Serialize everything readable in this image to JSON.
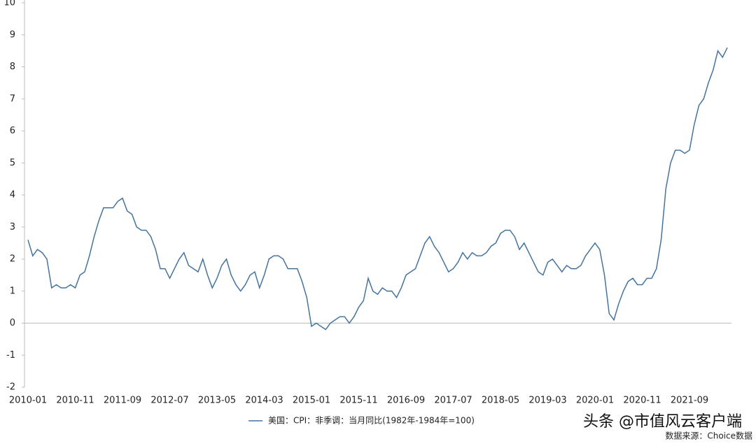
{
  "chart_data": {
    "type": "line",
    "legend": "美国：CPI：非季调：当月同比(1982年-1984年=100)",
    "annotations": [
      "头条 @市值风云客户端",
      "数据来源：Choice数据"
    ],
    "categories": [
      "2010-01",
      null,
      null,
      null,
      null,
      null,
      null,
      null,
      null,
      null,
      "2010-11",
      null,
      null,
      null,
      null,
      null,
      null,
      null,
      null,
      null,
      "2011-09",
      null,
      null,
      null,
      null,
      null,
      null,
      null,
      null,
      null,
      "2012-07",
      null,
      null,
      null,
      null,
      null,
      null,
      null,
      null,
      null,
      "2013-05",
      null,
      null,
      null,
      null,
      null,
      null,
      null,
      null,
      null,
      "2014-03",
      null,
      null,
      null,
      null,
      null,
      null,
      null,
      null,
      null,
      "2015-01",
      null,
      null,
      null,
      null,
      null,
      null,
      null,
      null,
      null,
      "2015-11",
      null,
      null,
      null,
      null,
      null,
      null,
      null,
      null,
      null,
      "2016-09",
      null,
      null,
      null,
      null,
      null,
      null,
      null,
      null,
      null,
      "2017-07",
      null,
      null,
      null,
      null,
      null,
      null,
      null,
      null,
      null,
      "2018-05",
      null,
      null,
      null,
      null,
      null,
      null,
      null,
      null,
      null,
      "2019-03",
      null,
      null,
      null,
      null,
      null,
      null,
      null,
      null,
      null,
      "2020-01",
      null,
      null,
      null,
      null,
      null,
      null,
      null,
      null,
      null,
      "2020-11",
      null,
      null,
      null,
      null,
      null,
      null,
      null,
      null,
      null,
      "2021-09",
      null,
      null,
      null,
      null,
      null,
      null,
      null,
      null
    ],
    "values": [
      2.6,
      2.1,
      2.3,
      2.2,
      2.0,
      1.1,
      1.2,
      1.1,
      1.1,
      1.2,
      1.1,
      1.5,
      1.6,
      2.1,
      2.7,
      3.2,
      3.6,
      3.6,
      3.6,
      3.8,
      3.9,
      3.5,
      3.4,
      3.0,
      2.9,
      2.9,
      2.7,
      2.3,
      1.7,
      1.7,
      1.4,
      1.7,
      2.0,
      2.2,
      1.8,
      1.7,
      1.6,
      2.0,
      1.5,
      1.1,
      1.4,
      1.8,
      2.0,
      1.5,
      1.2,
      1.0,
      1.2,
      1.5,
      1.6,
      1.1,
      1.5,
      2.0,
      2.1,
      2.1,
      2.0,
      1.7,
      1.7,
      1.7,
      1.3,
      0.8,
      -0.1,
      0.0,
      -0.1,
      -0.2,
      0.0,
      0.1,
      0.2,
      0.2,
      0.0,
      0.2,
      0.5,
      0.7,
      1.4,
      1.0,
      0.9,
      1.1,
      1.0,
      1.0,
      0.8,
      1.1,
      1.5,
      1.6,
      1.7,
      2.1,
      2.5,
      2.7,
      2.4,
      2.2,
      1.9,
      1.6,
      1.7,
      1.9,
      2.2,
      2.0,
      2.2,
      2.1,
      2.1,
      2.2,
      2.4,
      2.5,
      2.8,
      2.9,
      2.9,
      2.7,
      2.3,
      2.5,
      2.2,
      1.9,
      1.6,
      1.5,
      1.9,
      2.0,
      1.8,
      1.6,
      1.8,
      1.7,
      1.7,
      1.8,
      2.1,
      2.3,
      2.5,
      2.3,
      1.5,
      0.3,
      0.1,
      0.6,
      1.0,
      1.3,
      1.4,
      1.2,
      1.2,
      1.4,
      1.4,
      1.7,
      2.6,
      4.2,
      5.0,
      5.4,
      5.4,
      5.3,
      5.4,
      6.2,
      6.8,
      7.0,
      7.5,
      7.9,
      8.5,
      8.3,
      8.6
    ],
    "color": "#44749d",
    "ylim": [
      -2,
      10
    ],
    "yticks": [
      -2,
      -1,
      0,
      1,
      2,
      3,
      4,
      5,
      6,
      7,
      8,
      9,
      10
    ]
  }
}
